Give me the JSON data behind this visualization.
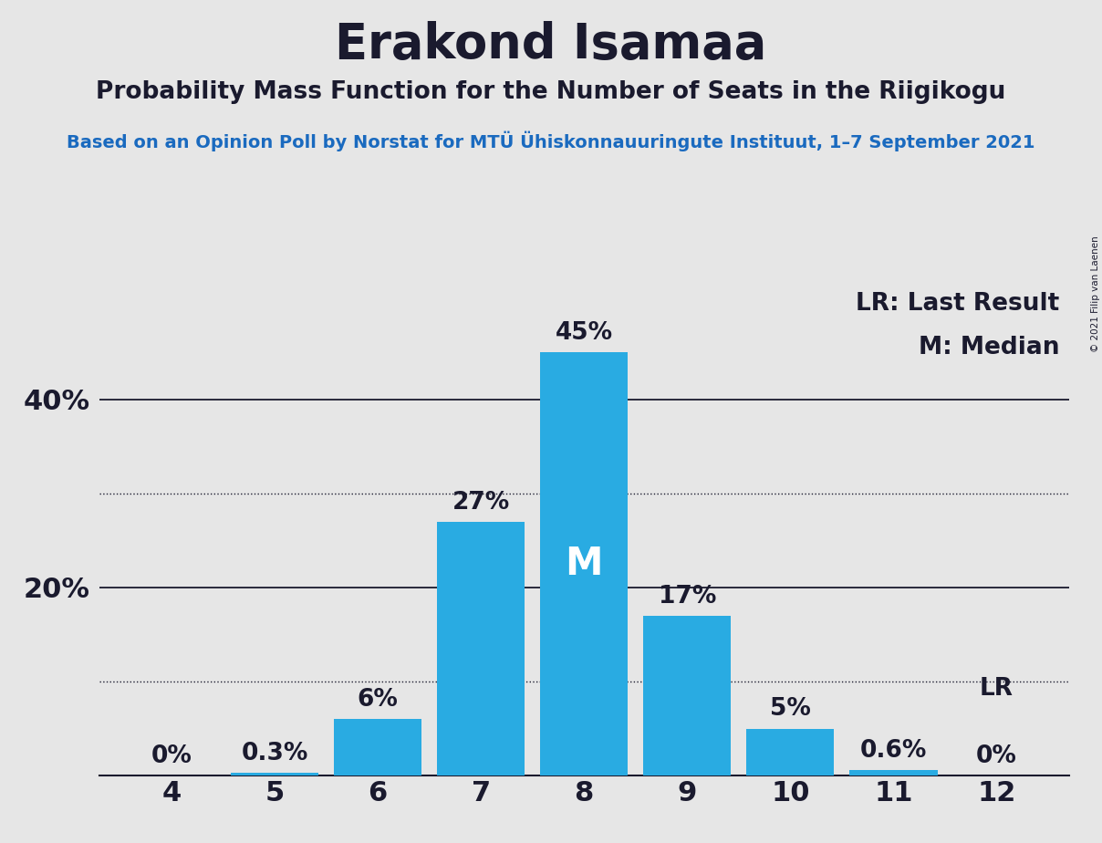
{
  "title": "Erakond Isamaa",
  "subtitle": "Probability Mass Function for the Number of Seats in the Riigikogu",
  "source_line": "Based on an Opinion Poll by Norstat for MTÜ Ühiskonnauuringute Instituut, 1–7 September 2021",
  "copyright": "© 2021 Filip van Laenen",
  "categories": [
    4,
    5,
    6,
    7,
    8,
    9,
    10,
    11,
    12
  ],
  "values": [
    0.0,
    0.3,
    6.0,
    27.0,
    45.0,
    17.0,
    5.0,
    0.6,
    0.0
  ],
  "bar_color": "#29abe2",
  "median_seat": 8,
  "lr_seat": 12,
  "median_label": "M",
  "lr_label": "LR",
  "legend_lr": "LR: Last Result",
  "legend_m": "M: Median",
  "solid_yticks": [
    0,
    20,
    40
  ],
  "dotted_yticks": [
    10,
    30
  ],
  "background_color": "#e6e6e6",
  "title_fontsize": 38,
  "subtitle_fontsize": 19,
  "source_fontsize": 14,
  "bar_label_fontsize": 19,
  "axis_fontsize": 22,
  "legend_fontsize": 19,
  "text_color": "#1a1a2e",
  "source_color": "#1a6abf"
}
